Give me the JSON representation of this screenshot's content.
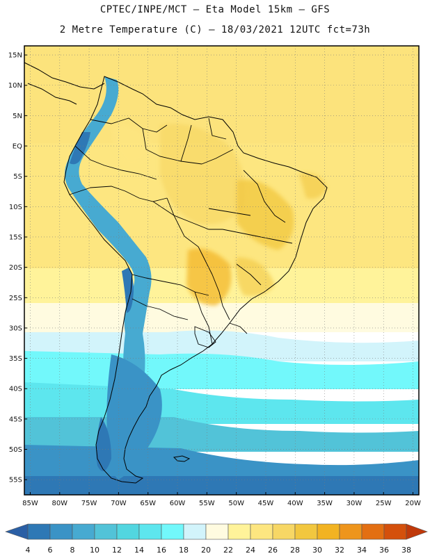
{
  "header": {
    "line1": "CPTEC/INPE/MCT –  Eta Model 15km – GFS",
    "line2": "2 Metre Temperature (C) – 18/03/2021 12UTC fct=73h"
  },
  "map": {
    "lat_labels": [
      "15N",
      "10N",
      "5N",
      "EQ",
      "5S",
      "10S",
      "15S",
      "20S",
      "25S",
      "30S",
      "35S",
      "40S",
      "45S",
      "50S",
      "55S"
    ],
    "lon_labels": [
      "85W",
      "80W",
      "75W",
      "70W",
      "65W",
      "60W",
      "55W",
      "50W",
      "45W",
      "40W",
      "35W",
      "30W",
      "25W",
      "20W"
    ],
    "lat_values": [
      15,
      10,
      5,
      0,
      -5,
      -10,
      -15,
      -20,
      -25,
      -30,
      -35,
      -40,
      -45,
      -50,
      -55
    ],
    "lon_values": [
      -85,
      -80,
      -75,
      -70,
      -65,
      -60,
      -55,
      -50,
      -45,
      -40,
      -35,
      -30,
      -25,
      -20
    ],
    "lat_range": [
      -57.5,
      16.5
    ],
    "lon_range": [
      -86,
      -19
    ]
  },
  "colorbar": {
    "labels": [
      "4",
      "6",
      "8",
      "10",
      "12",
      "14",
      "16",
      "18",
      "20",
      "22",
      "24",
      "26",
      "28",
      "30",
      "32",
      "34",
      "36",
      "38"
    ],
    "colors": [
      "#2a5fa5",
      "#2e78b5",
      "#3a93c6",
      "#47aad1",
      "#52c3d8",
      "#52d6e0",
      "#5de6ee",
      "#72f8fb",
      "#d2f4fb",
      "#fffbe0",
      "#fff39a",
      "#fde680",
      "#f7d765",
      "#f2c73f",
      "#f2b322",
      "#ee951c",
      "#e36f12",
      "#d4500c",
      "#c0390a"
    ]
  }
}
